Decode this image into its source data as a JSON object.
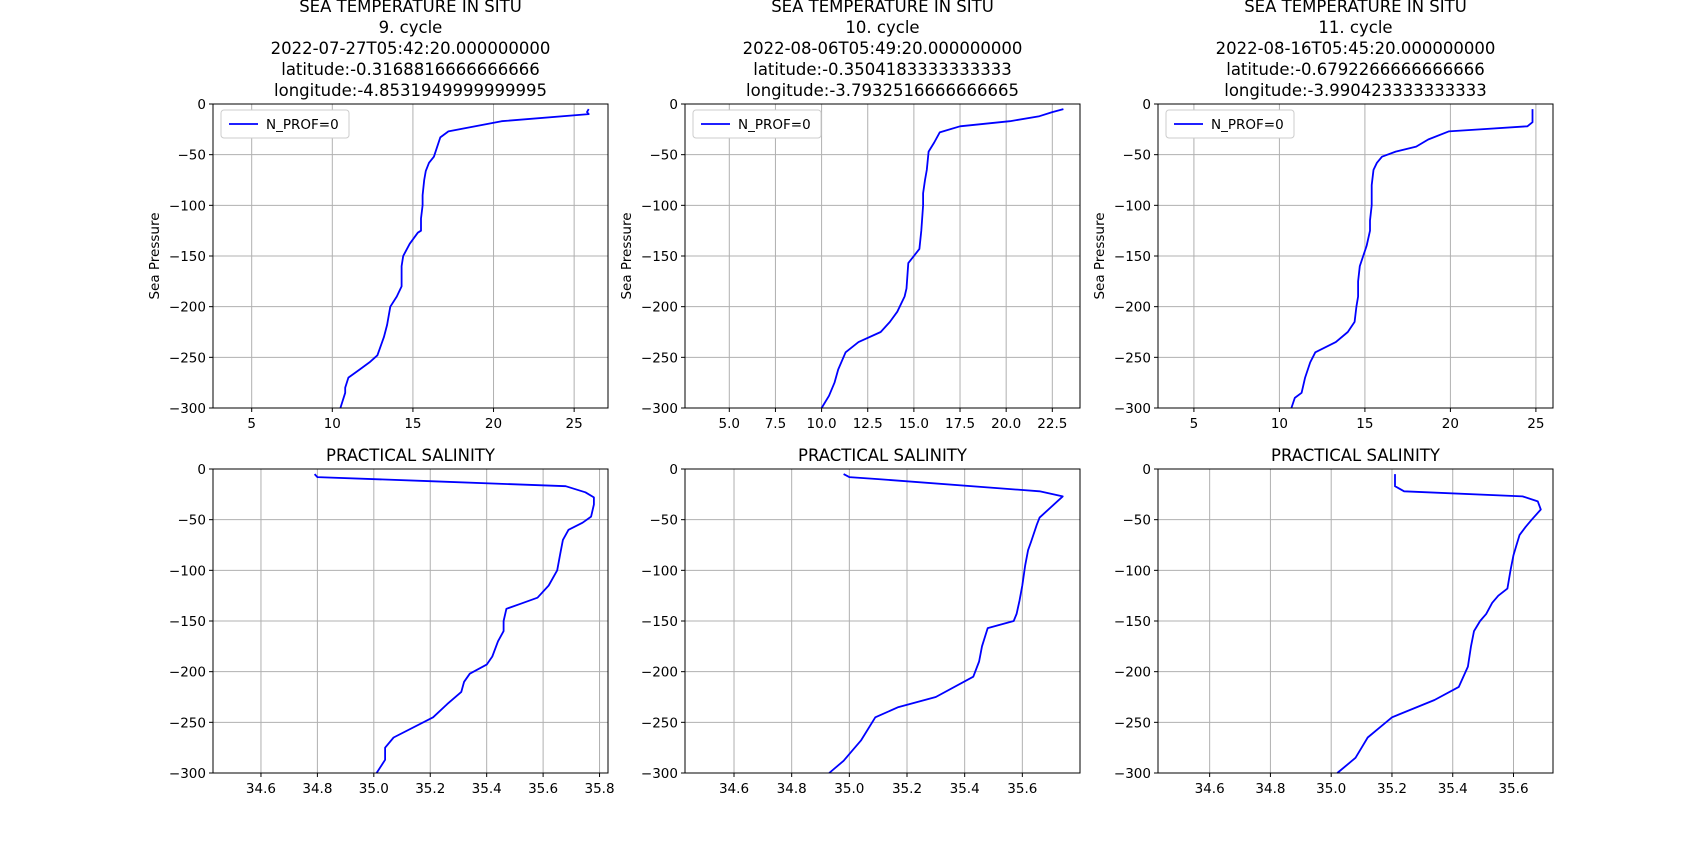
{
  "colors": {
    "line": "#0000ff",
    "grid": "#b0b0b0",
    "axes": "#000000"
  },
  "chart_data": [
    {
      "type": "line",
      "title_lines": [
        "SEA TEMPERATURE IN SITU",
        "9. cycle",
        "2022-07-27T05:42:20.000000000",
        "latitude:-0.3168816666666666",
        "longitude:-4.8531949999999995"
      ],
      "xlabel": "",
      "ylabel": "Sea Pressure",
      "xlim": [
        2.6,
        27.1
      ],
      "ylim": [
        -300,
        0
      ],
      "xticks": [
        5,
        10,
        15,
        20,
        25
      ],
      "xtick_labels": [
        "5",
        "10",
        "15",
        "20",
        "25"
      ],
      "yticks": [
        0,
        -50,
        -100,
        -150,
        -200,
        -250,
        -300
      ],
      "ytick_labels": [
        "0",
        "−50",
        "−100",
        "−150",
        "−200",
        "−250",
        "−300"
      ],
      "grid": true,
      "legend": {
        "entries": [
          "N_PROF=0"
        ],
        "position": "upper-left"
      },
      "series": [
        {
          "name": "N_PROF=0",
          "x": [
            25.9,
            25.8,
            25.9,
            20.5,
            17.2,
            16.7,
            16.3,
            16.0,
            15.8,
            15.7,
            15.6,
            15.6,
            15.5,
            15.5,
            15.3,
            14.8,
            14.4,
            14.3,
            14.3,
            14.0,
            13.6,
            13.4,
            13.2,
            12.8,
            12.3,
            11.7,
            11.0,
            10.8,
            10.8,
            10.5
          ],
          "y": [
            -5,
            -8,
            -10,
            -17,
            -27,
            -33,
            -52,
            -58,
            -66,
            -75,
            -90,
            -100,
            -113,
            -125,
            -127,
            -138,
            -150,
            -160,
            -180,
            -190,
            -200,
            -218,
            -230,
            -248,
            -255,
            -262,
            -270,
            -280,
            -285,
            -300
          ]
        }
      ]
    },
    {
      "type": "line",
      "title_lines": [
        "SEA TEMPERATURE IN SITU",
        "10. cycle",
        "2022-08-06T05:49:20.000000000",
        "latitude:-0.3504183333333333",
        "longitude:-3.7932516666666665"
      ],
      "xlabel": "",
      "ylabel": "Sea Pressure",
      "xlim": [
        2.6,
        24.0
      ],
      "ylim": [
        -300,
        0
      ],
      "xticks": [
        5.0,
        7.5,
        10.0,
        12.5,
        15.0,
        17.5,
        20.0,
        22.5
      ],
      "xtick_labels": [
        "5.0",
        "7.5",
        "10.0",
        "12.5",
        "15.0",
        "17.5",
        "20.0",
        "22.5"
      ],
      "yticks": [
        0,
        -50,
        -100,
        -150,
        -200,
        -250,
        -300
      ],
      "ytick_labels": [
        "0",
        "−50",
        "−100",
        "−150",
        "−200",
        "−250",
        "−300"
      ],
      "grid": true,
      "legend": {
        "entries": [
          "N_PROF=0"
        ],
        "position": "upper-left"
      },
      "series": [
        {
          "name": "N_PROF=0",
          "x": [
            23.1,
            22.5,
            21.8,
            20.2,
            17.5,
            16.4,
            16.1,
            15.8,
            15.7,
            15.6,
            15.5,
            15.5,
            15.4,
            15.3,
            15.0,
            14.7,
            14.6,
            14.5,
            14.1,
            13.7,
            13.2,
            12.0,
            11.3,
            10.9,
            10.7,
            10.4,
            10.0
          ],
          "y": [
            -5,
            -8,
            -12,
            -17,
            -22,
            -28,
            -38,
            -47,
            -65,
            -75,
            -88,
            -100,
            -125,
            -143,
            -150,
            -157,
            -182,
            -190,
            -205,
            -215,
            -225,
            -235,
            -245,
            -262,
            -275,
            -288,
            -300
          ]
        }
      ]
    },
    {
      "type": "line",
      "title_lines": [
        "SEA TEMPERATURE IN SITU",
        "11. cycle",
        "2022-08-16T05:45:20.000000000",
        "latitude:-0.6792266666666666",
        "longitude:-3.990423333333333"
      ],
      "xlabel": "",
      "ylabel": "Sea Pressure",
      "xlim": [
        2.9,
        26.0
      ],
      "ylim": [
        -300,
        0
      ],
      "xticks": [
        5,
        10,
        15,
        20,
        25
      ],
      "xtick_labels": [
        "5",
        "10",
        "15",
        "20",
        "25"
      ],
      "yticks": [
        0,
        -50,
        -100,
        -150,
        -200,
        -250,
        -300
      ],
      "ytick_labels": [
        "0",
        "−50",
        "−100",
        "−150",
        "−200",
        "−250",
        "−300"
      ],
      "grid": true,
      "legend": {
        "entries": [
          "N_PROF=0"
        ],
        "position": "upper-left"
      },
      "series": [
        {
          "name": "N_PROF=0",
          "x": [
            24.8,
            24.8,
            24.5,
            19.9,
            18.7,
            18.0,
            16.8,
            16.0,
            15.7,
            15.5,
            15.4,
            15.4,
            15.3,
            15.3,
            15.1,
            14.9,
            14.7,
            14.6,
            14.6,
            14.5,
            14.4,
            14.0,
            13.3,
            12.1,
            11.8,
            11.5,
            11.3,
            10.9,
            10.7
          ],
          "y": [
            -5,
            -18,
            -22,
            -27,
            -35,
            -42,
            -47,
            -52,
            -58,
            -65,
            -80,
            -100,
            -115,
            -125,
            -140,
            -150,
            -160,
            -175,
            -190,
            -200,
            -215,
            -225,
            -235,
            -245,
            -255,
            -270,
            -285,
            -290,
            -300
          ]
        }
      ]
    },
    {
      "type": "line",
      "title_lines": [
        "PRACTICAL SALINITY"
      ],
      "xlabel": "",
      "ylabel": "",
      "xlim": [
        34.43,
        35.83
      ],
      "ylim": [
        -300,
        0
      ],
      "xticks": [
        34.6,
        34.8,
        35.0,
        35.2,
        35.4,
        35.6,
        35.8
      ],
      "xtick_labels": [
        "34.6",
        "34.8",
        "35.0",
        "35.2",
        "35.4",
        "35.6",
        "35.8"
      ],
      "yticks": [
        0,
        -50,
        -100,
        -150,
        -200,
        -250,
        -300
      ],
      "ytick_labels": [
        "0",
        "−50",
        "−100",
        "−150",
        "−200",
        "−250",
        "−300"
      ],
      "grid": true,
      "series": [
        {
          "name": "",
          "x": [
            34.79,
            34.8,
            35.2,
            35.68,
            35.75,
            35.78,
            35.78,
            35.77,
            35.74,
            35.69,
            35.67,
            35.66,
            35.65,
            35.62,
            35.58,
            35.52,
            35.47,
            35.46,
            35.46,
            35.44,
            35.42,
            35.4,
            35.34,
            35.32,
            35.31,
            35.26,
            35.21,
            35.07,
            35.04,
            35.04,
            35.01
          ],
          "y": [
            -5,
            -8,
            -12,
            -17,
            -23,
            -28,
            -35,
            -47,
            -53,
            -60,
            -70,
            -85,
            -100,
            -115,
            -127,
            -133,
            -138,
            -150,
            -160,
            -170,
            -185,
            -193,
            -202,
            -210,
            -220,
            -232,
            -245,
            -265,
            -275,
            -287,
            -300
          ]
        }
      ]
    },
    {
      "type": "line",
      "title_lines": [
        "PRACTICAL SALINITY"
      ],
      "xlabel": "",
      "ylabel": "",
      "xlim": [
        34.43,
        35.8
      ],
      "ylim": [
        -300,
        0
      ],
      "xticks": [
        34.6,
        34.8,
        35.0,
        35.2,
        35.4,
        35.6
      ],
      "xtick_labels": [
        "34.6",
        "34.8",
        "35.0",
        "35.2",
        "35.4",
        "35.6"
      ],
      "yticks": [
        0,
        -50,
        -100,
        -150,
        -200,
        -250,
        -300
      ],
      "ytick_labels": [
        "0",
        "−50",
        "−100",
        "−150",
        "−200",
        "−250",
        "−300"
      ],
      "grid": true,
      "series": [
        {
          "name": "",
          "x": [
            34.98,
            35.0,
            35.1,
            35.66,
            35.74,
            35.66,
            35.65,
            35.63,
            35.62,
            35.61,
            35.6,
            35.59,
            35.58,
            35.57,
            35.48,
            35.46,
            35.45,
            35.43,
            35.3,
            35.17,
            35.09,
            35.04,
            35.01,
            34.98,
            34.93
          ],
          "y": [
            -5,
            -8,
            -10,
            -22,
            -27,
            -48,
            -55,
            -72,
            -80,
            -95,
            -115,
            -130,
            -143,
            -150,
            -157,
            -175,
            -190,
            -205,
            -225,
            -235,
            -245,
            -268,
            -278,
            -288,
            -300
          ]
        }
      ]
    },
    {
      "type": "line",
      "title_lines": [
        "PRACTICAL SALINITY"
      ],
      "xlabel": "",
      "ylabel": "",
      "xlim": [
        34.43,
        35.73
      ],
      "ylim": [
        -300,
        0
      ],
      "xticks": [
        34.6,
        34.8,
        35.0,
        35.2,
        35.4,
        35.6
      ],
      "xtick_labels": [
        "34.6",
        "34.8",
        "35.0",
        "35.2",
        "35.4",
        "35.6"
      ],
      "yticks": [
        0,
        -50,
        -100,
        -150,
        -200,
        -250,
        -300
      ],
      "ytick_labels": [
        "0",
        "−50",
        "−100",
        "−150",
        "−200",
        "−250",
        "−300"
      ],
      "grid": true,
      "series": [
        {
          "name": "",
          "x": [
            35.21,
            35.21,
            35.24,
            35.63,
            35.68,
            35.69,
            35.66,
            35.64,
            35.62,
            35.61,
            35.6,
            35.59,
            35.58,
            35.55,
            35.53,
            35.51,
            35.49,
            35.47,
            35.46,
            35.45,
            35.42,
            35.34,
            35.2,
            35.16,
            35.12,
            35.1,
            35.08,
            35.06,
            35.02
          ],
          "y": [
            -5,
            -17,
            -22,
            -27,
            -32,
            -40,
            -50,
            -57,
            -65,
            -75,
            -85,
            -100,
            -118,
            -125,
            -132,
            -143,
            -150,
            -160,
            -175,
            -195,
            -215,
            -228,
            -245,
            -255,
            -265,
            -275,
            -285,
            -290,
            -300
          ]
        }
      ]
    }
  ]
}
